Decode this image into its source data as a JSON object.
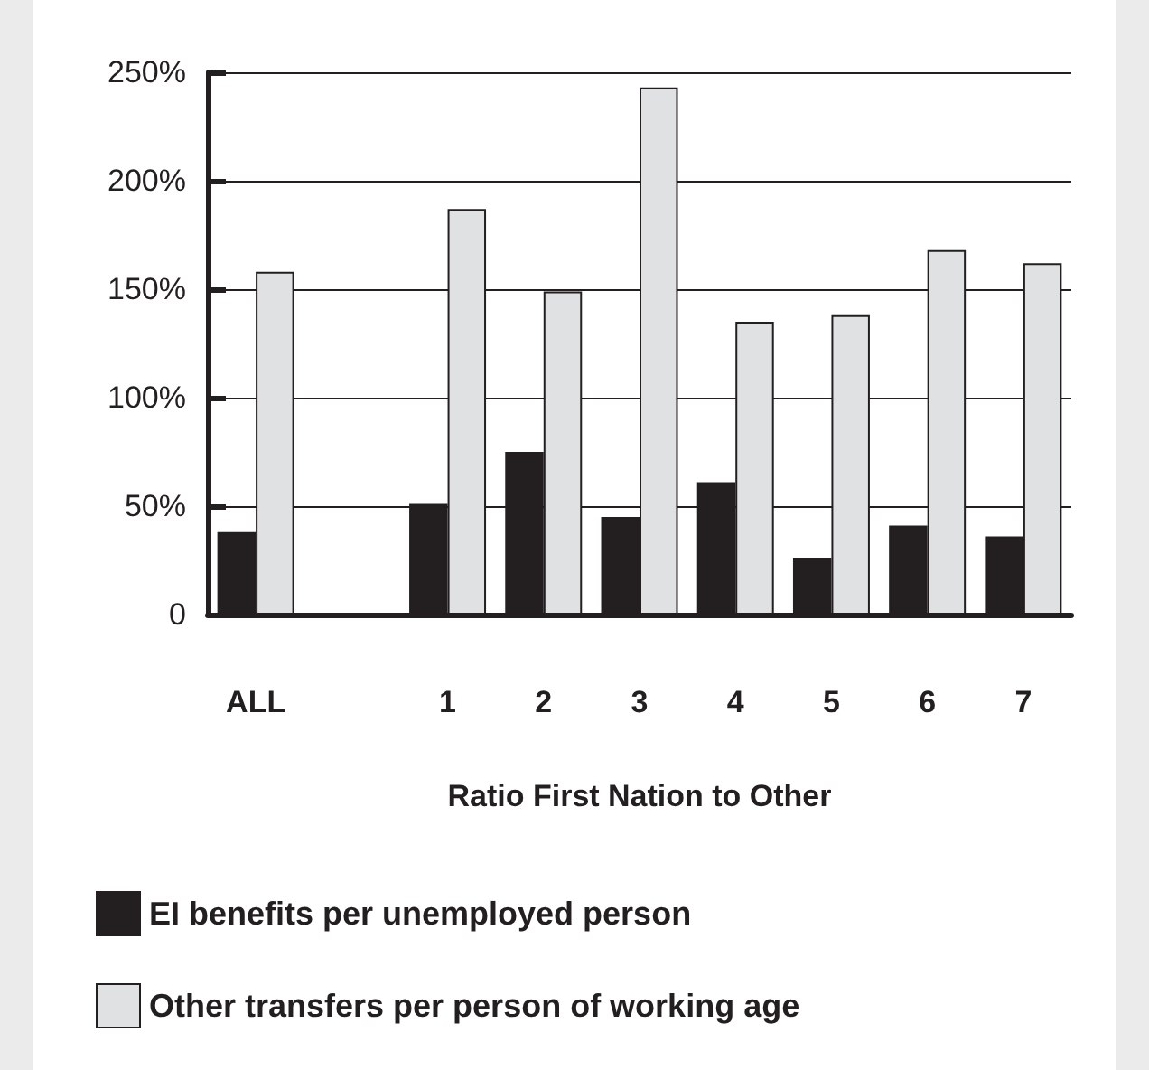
{
  "chart_data": {
    "type": "bar",
    "xlabel": "Ratio First Nation to Other",
    "categories": [
      "ALL",
      null,
      "1",
      "2",
      "3",
      "4",
      "5",
      "6",
      "7"
    ],
    "series": [
      {
        "name": "EI benefits per unemployed person",
        "color": "#231f20",
        "values": [
          38,
          null,
          51,
          75,
          45,
          61,
          26,
          41,
          36
        ]
      },
      {
        "name": "Other transfers per person of working age",
        "color": "#e0e1e3",
        "values": [
          158,
          null,
          187,
          149,
          243,
          135,
          138,
          168,
          162
        ]
      }
    ],
    "ylim": [
      0,
      250
    ],
    "yticks": [
      0,
      {
        "value": 50,
        "label": "50%"
      },
      {
        "value": 100,
        "label": "100%"
      },
      {
        "value": 150,
        "label": "150%"
      },
      {
        "value": 200,
        "label": "200%"
      },
      {
        "value": 250,
        "label": "250%"
      }
    ],
    "grid": "y",
    "legend": "bottom left"
  }
}
